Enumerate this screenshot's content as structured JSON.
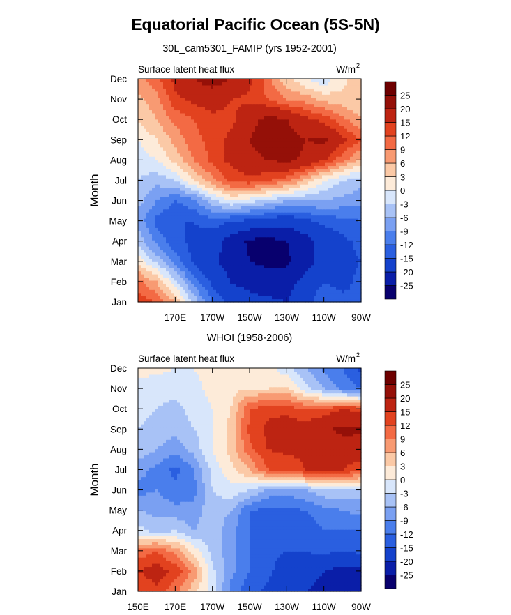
{
  "main_title": "Equatorial Pacific Ocean (5S-5N)",
  "colors": {
    "levels": [
      "-25",
      "-20",
      "-15",
      "-12",
      "-9",
      "-6",
      "-3",
      "0",
      "3",
      "6",
      "9",
      "12",
      "15",
      "20",
      "25"
    ],
    "palette": [
      "#08006e",
      "#0a1ea8",
      "#1442cc",
      "#2a5fe0",
      "#4a7eec",
      "#7aa0f2",
      "#a8c2f6",
      "#d8e6fb",
      "#fdebd9",
      "#fbc9a6",
      "#f89a72",
      "#f36a44",
      "#e2421f",
      "#bd2412",
      "#951008",
      "#6e0000"
    ]
  },
  "chart_data": [
    {
      "type": "heatmap",
      "title": "30L_cam5301_FAMIP (yrs 1952-2001)",
      "left_label": "Surface latent heat flux",
      "right_label": "W/m",
      "right_label_sup": "2",
      "ylabel": "Month",
      "months": [
        "Jan",
        "Feb",
        "Mar",
        "Apr",
        "May",
        "Jun",
        "Jul",
        "Aug",
        "Sep",
        "Oct",
        "Nov",
        "Dec"
      ],
      "lon_range": [
        150,
        270
      ],
      "xtick_values": [
        170,
        190,
        210,
        230,
        250,
        270
      ],
      "xtick_labels": [
        "170E",
        "170W",
        "150W",
        "130W",
        "110W",
        "90W"
      ],
      "colorbar_labels": [
        "-25",
        "-20",
        "-15",
        "-12",
        "-9",
        "-6",
        "-3",
        "0",
        "3",
        "6",
        "9",
        "12",
        "15",
        "20",
        "25"
      ],
      "lons": [
        150,
        160,
        170,
        180,
        190,
        200,
        210,
        220,
        230,
        240,
        250,
        260,
        270
      ],
      "values": [
        [
          14,
          12,
          6,
          -4,
          -12,
          -16,
          -18,
          -19,
          -20,
          -17,
          -12,
          -14,
          -15
        ],
        [
          10,
          6,
          -2,
          -10,
          -16,
          -20,
          -22,
          -23,
          -22,
          -18,
          -15,
          -16,
          -14
        ],
        [
          2,
          -4,
          -10,
          -16,
          -19,
          -22,
          -25,
          -26,
          -26,
          -22,
          -18,
          -16,
          -15
        ],
        [
          -4,
          -10,
          -14,
          -16,
          -18,
          -22,
          -26,
          -27,
          -25,
          -22,
          -18,
          -16,
          -14
        ],
        [
          -7,
          -13,
          -15,
          -15,
          -13,
          -15,
          -16,
          -17,
          -18,
          -16,
          -14,
          -13,
          -12
        ],
        [
          -5,
          -9,
          -12,
          -10,
          -4,
          0,
          -2,
          -4,
          -6,
          -6,
          -6,
          -7,
          -8
        ],
        [
          -3,
          -5,
          -3,
          3,
          8,
          13,
          14,
          12,
          10,
          5,
          0,
          -3,
          -5
        ],
        [
          -2,
          0,
          4,
          9,
          13,
          16,
          18,
          20,
          21,
          19,
          15,
          10,
          5
        ],
        [
          0,
          3,
          7,
          11,
          13,
          16,
          20,
          24,
          22,
          20,
          21,
          16,
          12
        ],
        [
          3,
          6,
          10,
          12,
          14,
          14,
          18,
          22,
          20,
          16,
          14,
          10,
          6
        ],
        [
          5,
          8,
          14,
          16,
          17,
          15,
          14,
          12,
          9,
          8,
          5,
          4,
          3
        ],
        [
          8,
          11,
          16,
          20,
          22,
          20,
          16,
          10,
          4,
          0,
          -2,
          2,
          6
        ]
      ]
    },
    {
      "type": "heatmap",
      "title": "WHOI (1958-2006)",
      "left_label": "Surface latent heat flux",
      "right_label": "W/m",
      "right_label_sup": "2",
      "ylabel": "Month",
      "months": [
        "Jan",
        "Feb",
        "Mar",
        "Apr",
        "May",
        "Jun",
        "Jul",
        "Aug",
        "Sep",
        "Oct",
        "Nov",
        "Dec"
      ],
      "lon_range": [
        150,
        270
      ],
      "xtick_values": [
        150,
        170,
        190,
        210,
        230,
        250,
        270
      ],
      "xtick_labels": [
        "150E",
        "170E",
        "170W",
        "150W",
        "130W",
        "110W",
        "90W"
      ],
      "colorbar_labels": [
        "25",
        "20",
        "15",
        "12",
        "9",
        "6",
        "3",
        "0",
        "-3",
        "-6",
        "-9",
        "-12",
        "-15",
        "-20",
        "-25"
      ],
      "lons": [
        150,
        160,
        170,
        180,
        190,
        200,
        210,
        220,
        230,
        240,
        250,
        260,
        270
      ],
      "values": [
        [
          12,
          14,
          10,
          4,
          -2,
          -10,
          -14,
          -16,
          -18,
          -20,
          -22,
          -22,
          -23
        ],
        [
          15,
          17,
          14,
          8,
          -2,
          -8,
          -12,
          -14,
          -18,
          -17,
          -20,
          -22,
          -21
        ],
        [
          10,
          12,
          8,
          2,
          -4,
          -8,
          -12,
          -14,
          -15,
          -15,
          -14,
          -15,
          -14
        ],
        [
          -2,
          -4,
          -3,
          -6,
          -4,
          -8,
          -12,
          -12,
          -14,
          -14,
          -12,
          -12,
          -12
        ],
        [
          -6,
          -7,
          -8,
          -8,
          -4,
          -6,
          -12,
          -13,
          -13,
          -12,
          -10,
          -9,
          -8
        ],
        [
          -10,
          -9,
          -11,
          -10,
          -3,
          -1,
          -3,
          -7,
          -8,
          -6,
          -4,
          -4,
          -4
        ],
        [
          -8,
          -10,
          -13,
          -9,
          -2,
          2,
          6,
          12,
          12,
          15,
          16,
          15,
          13
        ],
        [
          -4,
          -6,
          -8,
          -5,
          0,
          4,
          11,
          15,
          16,
          16,
          18,
          18,
          17
        ],
        [
          -3,
          -4,
          -5,
          -3,
          0,
          4,
          13,
          16,
          17,
          17,
          19,
          21,
          21
        ],
        [
          -2,
          -3,
          -4,
          -2,
          0,
          3,
          12,
          14,
          14,
          12,
          13,
          15,
          14
        ],
        [
          -1,
          -2,
          -2,
          -1,
          1,
          2,
          3,
          3,
          4,
          -2,
          -6,
          -10,
          -12
        ],
        [
          1,
          1,
          0,
          0,
          1,
          2,
          3,
          1,
          -2,
          -6,
          -10,
          -12,
          -16
        ]
      ]
    }
  ]
}
